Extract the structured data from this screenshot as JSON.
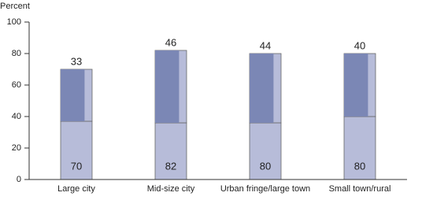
{
  "chart_data": {
    "type": "bar",
    "stacked": true,
    "y_label": "Percent",
    "categories": [
      "Large city",
      "Mid-size city",
      "Urban fringe/large town",
      "Small town/rural"
    ],
    "series": [
      {
        "color": "#b7bcd9",
        "values": [
          37,
          36,
          36,
          40
        ]
      },
      {
        "color": "#7b87b5",
        "values": [
          33,
          46,
          44,
          40
        ]
      }
    ],
    "totals": [
      70,
      82,
      80,
      80
    ],
    "ylim": [
      0,
      100
    ],
    "yticks": [
      0,
      20,
      40,
      60,
      80,
      100
    ],
    "grid": false
  }
}
